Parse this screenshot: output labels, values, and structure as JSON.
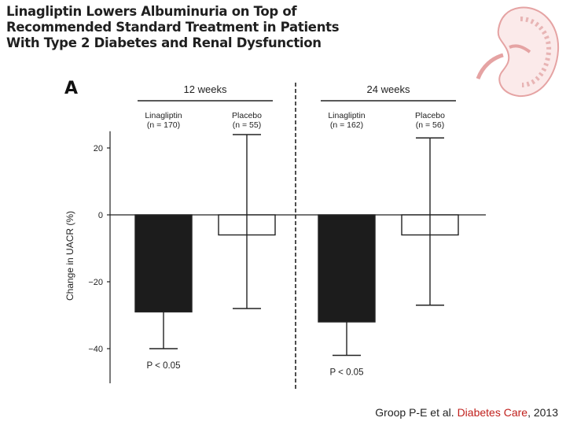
{
  "slide": {
    "title": "Linagliptin Lowers Albuminuria on Top of Recommended Standard Treatment in Patients With Type 2 Diabetes and Renal Dysfunction",
    "panel_label": "A"
  },
  "citation": {
    "authors": "Groop P-E et al.",
    "journal": "Diabetes Care",
    "year": "2013"
  },
  "icons": {
    "kidney": "kidney-illustration-icon"
  },
  "colors": {
    "linagliptin_bar": "#1c1c1c",
    "placebo_bar": "#ffffff",
    "journal_text": "#c0201c"
  },
  "chart_data": {
    "type": "bar",
    "ylabel": "Change in UACR (%)",
    "ylim": [
      -50,
      25
    ],
    "yticks": [
      20,
      0,
      -20,
      -40
    ],
    "ytick_labels": [
      "20",
      "0",
      "−20",
      "−40"
    ],
    "divider": "dashed vertical line between time points",
    "groups": [
      {
        "label": "12 weeks",
        "bars": [
          {
            "name": "Linagliptin",
            "n_label": "n = 170",
            "value": -29,
            "error_low": -40,
            "error_high": -29,
            "fill": "dark",
            "annotation": "P < 0.05"
          },
          {
            "name": "Placebo",
            "n_label": "n = 55",
            "value": -6,
            "error_low": -28,
            "error_high": 24,
            "fill": "light",
            "annotation": ""
          }
        ]
      },
      {
        "label": "24 weeks",
        "bars": [
          {
            "name": "Linagliptin",
            "n_label": "n = 162",
            "value": -32,
            "error_low": -42,
            "error_high": -32,
            "fill": "dark",
            "annotation": "P < 0.05"
          },
          {
            "name": "Placebo",
            "n_label": "n = 56",
            "value": -6,
            "error_low": -27,
            "error_high": 23,
            "fill": "light",
            "annotation": ""
          }
        ]
      }
    ]
  }
}
